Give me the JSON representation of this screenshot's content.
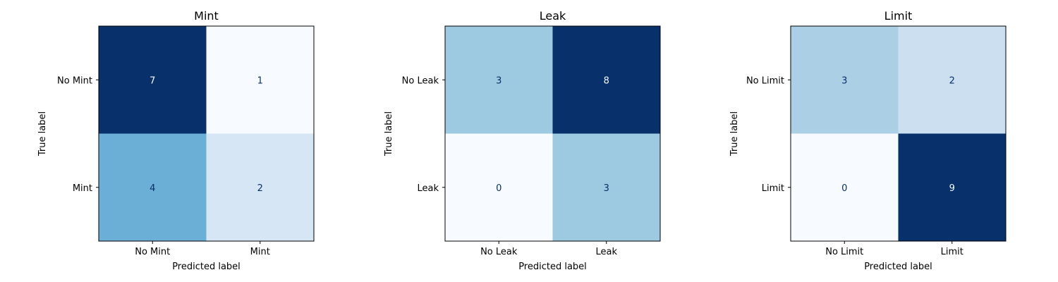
{
  "chart_data": [
    {
      "type": "heatmap",
      "title": "Mint",
      "xlabel": "Predicted label",
      "ylabel": "True label",
      "x_categories": [
        "No Mint",
        "Mint"
      ],
      "y_categories": [
        "No Mint",
        "Mint"
      ],
      "values": [
        [
          7,
          1
        ],
        [
          4,
          2
        ]
      ],
      "colormap": "Blues"
    },
    {
      "type": "heatmap",
      "title": "Leak",
      "xlabel": "Predicted label",
      "ylabel": "True label",
      "x_categories": [
        "No Leak",
        "Leak"
      ],
      "y_categories": [
        "No Leak",
        "Leak"
      ],
      "values": [
        [
          3,
          8
        ],
        [
          0,
          3
        ]
      ],
      "colormap": "Blues"
    },
    {
      "type": "heatmap",
      "title": "Limit",
      "xlabel": "Predicted label",
      "ylabel": "True label",
      "x_categories": [
        "No Limit",
        "Limit"
      ],
      "y_categories": [
        "No Limit",
        "Limit"
      ],
      "values": [
        [
          3,
          2
        ],
        [
          0,
          9
        ]
      ],
      "colormap": "Blues"
    }
  ]
}
